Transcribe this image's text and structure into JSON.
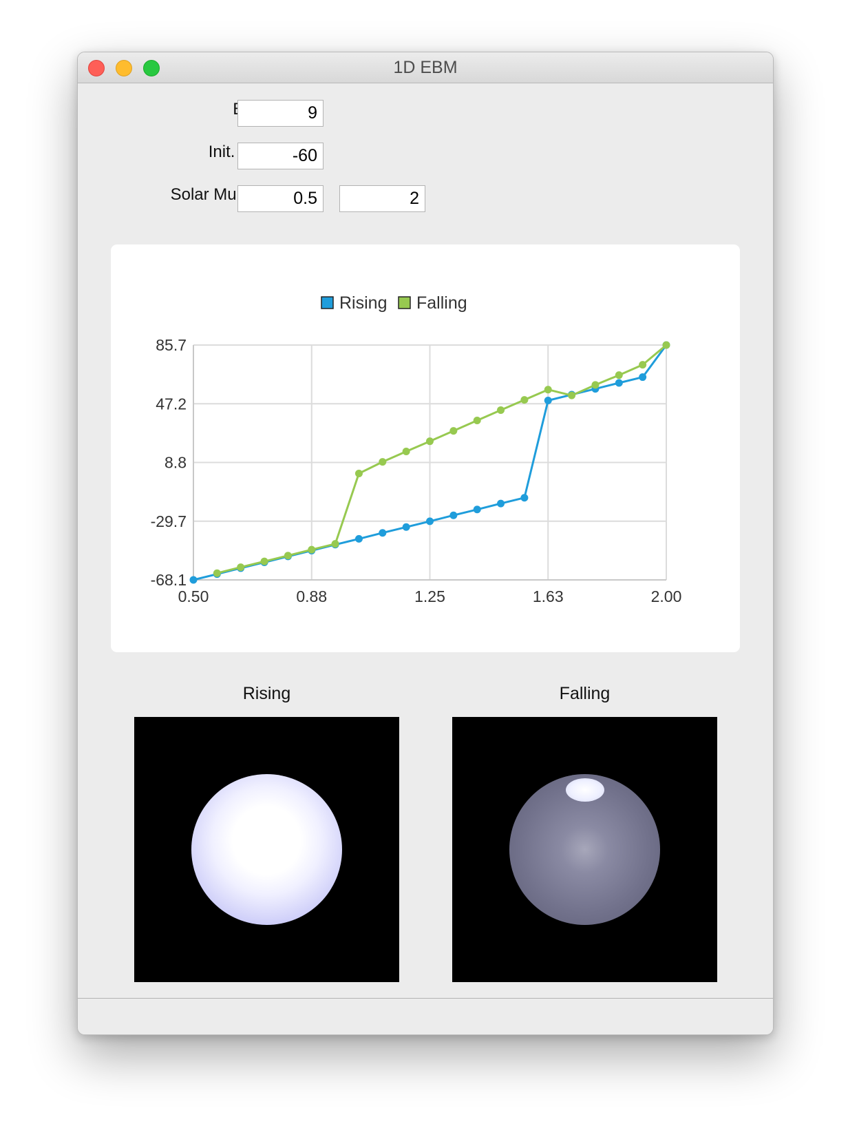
{
  "window": {
    "title": "1D EBM"
  },
  "form": {
    "bands_label": "Bands:",
    "bands_value": "9",
    "init_temp_label": "Init. Temp:",
    "init_temp_value": "-60",
    "solar_label": "Solar Multiplier:",
    "solar_min_value": "0.5",
    "solar_max_value": "2"
  },
  "chart_data": {
    "type": "line",
    "xlim": [
      0.5,
      2.0
    ],
    "ylim": [
      -68.1,
      85.7
    ],
    "x_ticks": [
      "0.50",
      "0.88",
      "1.25",
      "1.63",
      "2.00"
    ],
    "y_ticks": [
      "85.7",
      "47.2",
      "8.8",
      "-29.7",
      "-68.1"
    ],
    "grid": true,
    "legend_position": "top-center",
    "series": [
      {
        "name": "Rising",
        "color": "#1f9ddb",
        "x": [
          0.5,
          0.575,
          0.65,
          0.725,
          0.8,
          0.875,
          0.95,
          1.025,
          1.1,
          1.175,
          1.25,
          1.325,
          1.4,
          1.475,
          1.55,
          1.625,
          1.7,
          1.775,
          1.85,
          1.925,
          2.0
        ],
        "values": [
          -68.1,
          -64.3,
          -60.4,
          -56.6,
          -52.7,
          -48.9,
          -45.0,
          -41.2,
          -37.3,
          -33.5,
          -29.7,
          -25.8,
          -22.0,
          -18.1,
          -14.3,
          49.4,
          53.2,
          57.0,
          60.9,
          64.7,
          85.7
        ]
      },
      {
        "name": "Falling",
        "color": "#97c950",
        "x": [
          0.575,
          0.65,
          0.725,
          0.8,
          0.875,
          0.95,
          1.025,
          1.1,
          1.175,
          1.25,
          1.325,
          1.4,
          1.475,
          1.55,
          1.625,
          1.7,
          1.775,
          1.85,
          1.925,
          2.0
        ],
        "values": [
          -63.7,
          -59.8,
          -56.0,
          -52.2,
          -48.3,
          -44.5,
          1.6,
          9.2,
          16.0,
          22.7,
          29.5,
          36.3,
          43.1,
          49.8,
          56.5,
          52.7,
          59.6,
          66.0,
          72.8,
          85.7
        ]
      }
    ]
  },
  "spheres": {
    "rising_title": "Rising",
    "falling_title": "Falling"
  }
}
